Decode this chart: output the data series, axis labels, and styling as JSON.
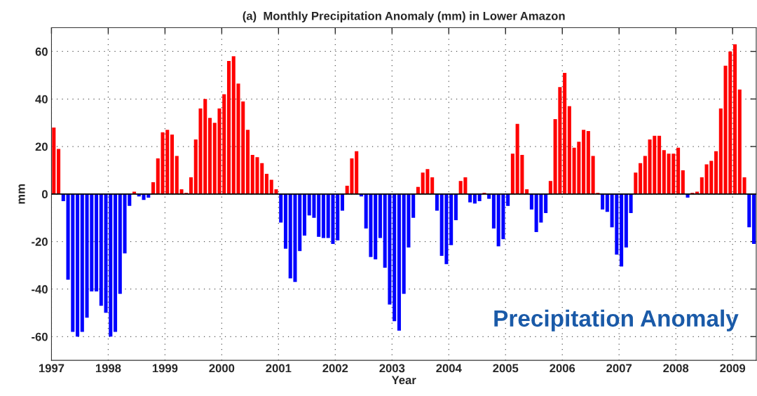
{
  "chart_data": {
    "type": "bar",
    "title": "(a)  Monthly Precipitation Anomaly (mm) in Lower Amazon",
    "xlabel": "Year",
    "ylabel": "mm",
    "x": [
      "1997-01",
      "1997-02",
      "1997-03",
      "1997-04",
      "1997-05",
      "1997-06",
      "1997-07",
      "1997-08",
      "1997-09",
      "1997-10",
      "1997-11",
      "1997-12",
      "1998-01",
      "1998-02",
      "1998-03",
      "1998-04",
      "1998-05",
      "1998-06",
      "1998-07",
      "1998-08",
      "1998-09",
      "1998-10",
      "1998-11",
      "1998-12",
      "1999-01",
      "1999-02",
      "1999-03",
      "1999-04",
      "1999-05",
      "1999-06",
      "1999-07",
      "1999-08",
      "1999-09",
      "1999-10",
      "1999-11",
      "1999-12",
      "2000-01",
      "2000-02",
      "2000-03",
      "2000-04",
      "2000-05",
      "2000-06",
      "2000-07",
      "2000-08",
      "2000-09",
      "2000-10",
      "2000-11",
      "2000-12",
      "2001-01",
      "2001-02",
      "2001-03",
      "2001-04",
      "2001-05",
      "2001-06",
      "2001-07",
      "2001-08",
      "2001-09",
      "2001-10",
      "2001-11",
      "2001-12",
      "2002-01",
      "2002-02",
      "2002-03",
      "2002-04",
      "2002-05",
      "2002-06",
      "2002-07",
      "2002-08",
      "2002-09",
      "2002-10",
      "2002-11",
      "2002-12",
      "2003-01",
      "2003-02",
      "2003-03",
      "2003-04",
      "2003-05",
      "2003-06",
      "2003-07",
      "2003-08",
      "2003-09",
      "2003-10",
      "2003-11",
      "2003-12",
      "2004-01",
      "2004-02",
      "2004-03",
      "2004-04",
      "2004-05",
      "2004-06",
      "2004-07",
      "2004-08",
      "2004-09",
      "2004-10",
      "2004-11",
      "2004-12",
      "2005-01",
      "2005-02",
      "2005-03",
      "2005-04",
      "2005-05",
      "2005-06",
      "2005-07",
      "2005-08",
      "2005-09",
      "2005-10",
      "2005-11",
      "2005-12",
      "2006-01",
      "2006-02",
      "2006-03",
      "2006-04",
      "2006-05",
      "2006-06",
      "2006-07",
      "2006-08",
      "2006-09",
      "2006-10",
      "2006-11",
      "2006-12",
      "2007-01",
      "2007-02",
      "2007-03",
      "2007-04",
      "2007-05",
      "2007-06",
      "2007-07",
      "2007-08",
      "2007-09",
      "2007-10",
      "2007-11",
      "2007-12",
      "2008-01",
      "2008-02",
      "2008-03",
      "2008-04",
      "2008-05",
      "2008-06",
      "2008-07",
      "2008-08",
      "2008-09",
      "2008-10",
      "2008-11",
      "2008-12",
      "2009-01",
      "2009-02",
      "2009-03",
      "2009-04",
      "2009-05"
    ],
    "values": [
      28,
      19,
      -3,
      -36,
      -58,
      -60,
      -58,
      -52,
      -41,
      -41,
      -47,
      -50,
      -60,
      -58,
      -42,
      -25,
      -5,
      1,
      -1,
      -2.5,
      -1.5,
      5,
      15,
      26,
      27,
      25,
      16,
      2,
      0.5,
      7,
      23,
      36,
      40,
      32,
      30,
      36,
      42,
      56,
      58,
      46.5,
      39,
      27,
      16.5,
      15.5,
      13,
      8.5,
      6,
      2,
      -12,
      -23,
      -35.5,
      -37,
      -24,
      -17.5,
      -9,
      -10,
      -18,
      -18.5,
      -18.5,
      -21,
      -19.5,
      -7,
      3.5,
      15,
      18,
      -1,
      -14.5,
      -26.5,
      -27.5,
      -18.5,
      -31,
      -46.5,
      -53.5,
      -57.5,
      -42,
      -22.5,
      -10,
      3,
      9,
      10.5,
      7,
      -7,
      -26,
      -29.5,
      -21.5,
      -11,
      5.5,
      7,
      -3.5,
      -4,
      -3,
      0.5,
      -2,
      -14.5,
      -22,
      -19,
      -5,
      17,
      29.5,
      16.5,
      2,
      -6.5,
      -16,
      -12,
      -8,
      5.5,
      31.5,
      45,
      51,
      37,
      19.5,
      22,
      27,
      26.5,
      16,
      0.5,
      -6.5,
      -7.5,
      -14,
      -25.5,
      -30.5,
      -22.5,
      -8,
      9,
      13,
      16,
      23,
      24.5,
      24.5,
      18.5,
      17,
      17,
      19.5,
      10,
      -1.5,
      0.5,
      1,
      7,
      12.5,
      14,
      18,
      36,
      54,
      60,
      63,
      44,
      7,
      -14,
      -21
    ],
    "colors": [
      "#ff0000",
      "#ff0000",
      "#0000ff",
      "#0000ff",
      "#0000ff",
      "#0000ff",
      "#0000ff",
      "#0000ff",
      "#0000ff",
      "#0000ff",
      "#0000ff",
      "#0000ff",
      "#0000ff",
      "#0000ff",
      "#0000ff",
      "#0000ff",
      "#0000ff",
      "#ff0000",
      "#0000ff",
      "#0000ff",
      "#0000ff",
      "#ff0000",
      "#ff0000",
      "#ff0000",
      "#ff0000",
      "#ff0000",
      "#ff0000",
      "#ff0000",
      "#ff0000",
      "#ff0000",
      "#ff0000",
      "#ff0000",
      "#ff0000",
      "#ff0000",
      "#ff0000",
      "#ff0000",
      "#ff0000",
      "#ff0000",
      "#ff0000",
      "#ff0000",
      "#ff0000",
      "#ff0000",
      "#ff0000",
      "#ff0000",
      "#ff0000",
      "#ff0000",
      "#ff0000",
      "#ff0000",
      "#0000ff",
      "#0000ff",
      "#0000ff",
      "#0000ff",
      "#0000ff",
      "#0000ff",
      "#0000ff",
      "#0000ff",
      "#0000ff",
      "#0000ff",
      "#0000ff",
      "#0000ff",
      "#0000ff",
      "#0000ff",
      "#ff0000",
      "#ff0000",
      "#ff0000",
      "#0000ff",
      "#0000ff",
      "#0000ff",
      "#0000ff",
      "#0000ff",
      "#0000ff",
      "#0000ff",
      "#0000ff",
      "#0000ff",
      "#0000ff",
      "#0000ff",
      "#0000ff",
      "#ff0000",
      "#ff0000",
      "#ff0000",
      "#ff0000",
      "#0000ff",
      "#0000ff",
      "#0000ff",
      "#0000ff",
      "#0000ff",
      "#ff0000",
      "#ff0000",
      "#0000ff",
      "#0000ff",
      "#0000ff",
      "#ff0000",
      "#0000ff",
      "#0000ff",
      "#0000ff",
      "#0000ff",
      "#0000ff",
      "#ff0000",
      "#ff0000",
      "#ff0000",
      "#ff0000",
      "#0000ff",
      "#0000ff",
      "#0000ff",
      "#0000ff",
      "#ff0000",
      "#ff0000",
      "#ff0000",
      "#ff0000",
      "#ff0000",
      "#ff0000",
      "#ff0000",
      "#ff0000",
      "#ff0000",
      "#ff0000",
      "#ff0000",
      "#0000ff",
      "#0000ff",
      "#0000ff",
      "#0000ff",
      "#0000ff",
      "#0000ff",
      "#0000ff",
      "#ff0000",
      "#ff0000",
      "#ff0000",
      "#ff0000",
      "#ff0000",
      "#ff0000",
      "#ff0000",
      "#ff0000",
      "#ff0000",
      "#ff0000",
      "#ff0000",
      "#0000ff",
      "#ff0000",
      "#ff0000",
      "#ff0000",
      "#ff0000",
      "#ff0000",
      "#ff0000",
      "#ff0000",
      "#ff0000",
      "#ff0000",
      "#ff0000",
      "#ff0000",
      "#ff0000",
      "#0000ff",
      "#0000ff"
    ],
    "xlim": [
      "1997",
      "2009-06"
    ],
    "xticks": [
      "1997",
      "1998",
      "1999",
      "2000",
      "2001",
      "2002",
      "2003",
      "2004",
      "2005",
      "2006",
      "2007",
      "2008",
      "2009"
    ],
    "ylim": [
      -70,
      70
    ],
    "yticks": [
      -60,
      -40,
      -20,
      0,
      20,
      40,
      60
    ],
    "grid": true,
    "annotations": [
      "Precipitation Anomaly"
    ]
  }
}
